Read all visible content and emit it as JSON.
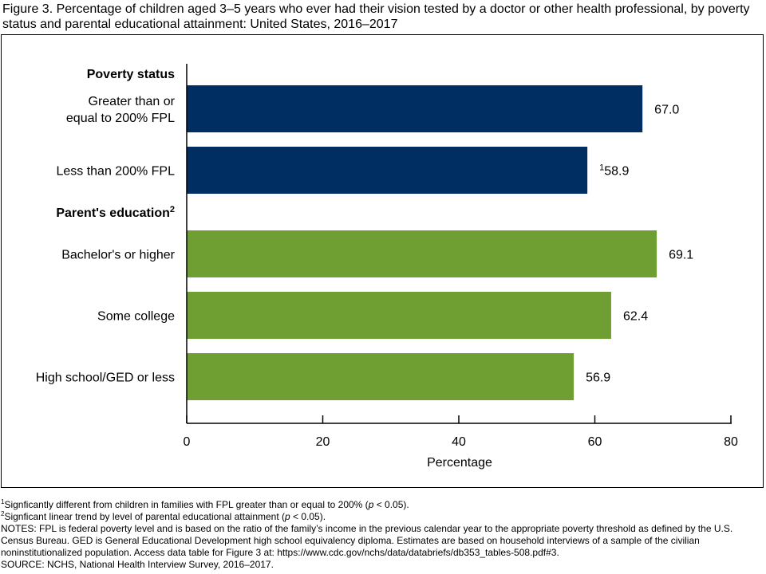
{
  "figure": {
    "title": "Figure 3. Percentage of children aged 3–5 years who ever had their vision tested by a doctor or other health professional, by poverty status and parental educational attainment: United States, 2016–2017"
  },
  "chart_data": {
    "type": "bar",
    "orientation": "horizontal",
    "xlabel": "Percentage",
    "xlim": [
      0,
      80
    ],
    "xticks": [
      "0",
      "20",
      "40",
      "60",
      "80"
    ],
    "grid": false,
    "groups": [
      {
        "label": "Poverty status",
        "superscript": "",
        "color": "#002d62"
      },
      {
        "label": "Parent's education",
        "superscript": "2",
        "color": "#6f9e33"
      }
    ],
    "bars": [
      {
        "group": 0,
        "category_lines": [
          "Greater than or",
          "equal to 200% FPL"
        ],
        "value": 67.0,
        "label": "67.0",
        "note": ""
      },
      {
        "group": 0,
        "category_lines": [
          "Less than 200% FPL"
        ],
        "value": 58.9,
        "label": "58.9",
        "note": "1"
      },
      {
        "group": 1,
        "category_lines": [
          "Bachelor's or higher"
        ],
        "value": 69.1,
        "label": "69.1",
        "note": ""
      },
      {
        "group": 1,
        "category_lines": [
          "Some college"
        ],
        "value": 62.4,
        "label": "62.4",
        "note": ""
      },
      {
        "group": 1,
        "category_lines": [
          "High school/GED or less"
        ],
        "value": 56.9,
        "label": "56.9",
        "note": ""
      }
    ]
  },
  "notes": {
    "fn1_mark": "1",
    "fn1_pre": "Signficantly different from children in families with FPL greater than or equal to 200% (",
    "fn1_p": "p",
    "fn1_post": " < 0.05).",
    "fn2_mark": "2",
    "fn2_pre": "Signficant linear trend by level of parental educational attainment (",
    "fn2_p": "p",
    "fn2_post": " < 0.05).",
    "notes_text": "NOTES: FPL is federal poverty level and is based on the ratio of the family’s income in the previous calendar year to the appropriate poverty threshold as defined by the U.S. Census Bureau. GED is General Educational Development high school equivalency diploma. Estimates are based on household interviews of a sample of the civilian noninstitutionalized population. Access data table for Figure 3 at: https://www.cdc.gov/nchs/data/databriefs/db353_tables-508.pdf#3.",
    "source": "SOURCE: NCHS, National Health Interview Survey, 2016–2017."
  }
}
